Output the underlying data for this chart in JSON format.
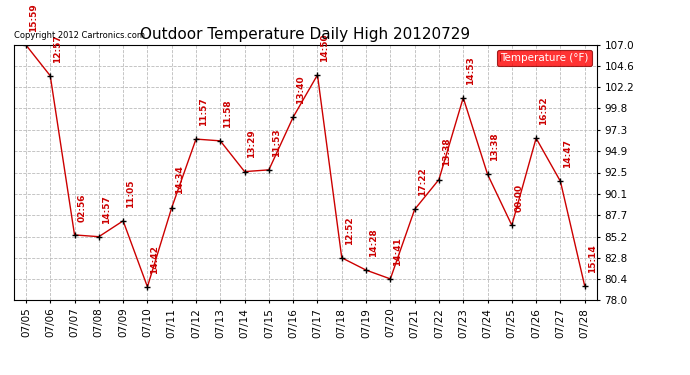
{
  "title": "Outdoor Temperature Daily High 20120729",
  "copyright_text": "Copyright 2012 Cartronics.com",
  "legend_label": "Temperature (°F)",
  "x_labels": [
    "07/05",
    "07/06",
    "07/07",
    "07/08",
    "07/09",
    "07/10",
    "07/11",
    "07/12",
    "07/13",
    "07/14",
    "07/15",
    "07/16",
    "07/17",
    "07/18",
    "07/19",
    "07/20",
    "07/21",
    "07/22",
    "07/23",
    "07/24",
    "07/25",
    "07/26",
    "07/27",
    "07/28"
  ],
  "y_values": [
    107.0,
    103.5,
    85.4,
    85.2,
    87.0,
    79.5,
    88.5,
    96.3,
    96.1,
    92.6,
    92.8,
    98.8,
    103.6,
    82.8,
    81.4,
    80.4,
    88.3,
    91.7,
    101.0,
    92.3,
    86.5,
    96.4,
    91.5,
    79.6
  ],
  "time_labels": [
    "15:59",
    "12:57",
    "02:56",
    "14:57",
    "11:05",
    "14:42",
    "14:34",
    "11:57",
    "11:58",
    "13:29",
    "11:53",
    "13:40",
    "14:50",
    "12:52",
    "14:28",
    "14:41",
    "17:22",
    "13:38",
    "14:53",
    "13:38",
    "00:00",
    "16:52",
    "14:47",
    "15:14"
  ],
  "ylim": [
    78.0,
    107.0
  ],
  "yticks": [
    78.0,
    80.4,
    82.8,
    85.2,
    87.7,
    90.1,
    92.5,
    94.9,
    97.3,
    99.8,
    102.2,
    104.6,
    107.0
  ],
  "line_color": "#cc0000",
  "marker_color": "#000000",
  "grid_color": "#bbbbbb",
  "bg_color": "#ffffff",
  "annotation_color": "#cc0000",
  "title_fontsize": 11,
  "annotation_fontsize": 6.5,
  "tick_fontsize": 7.5,
  "copyright_fontsize": 6
}
